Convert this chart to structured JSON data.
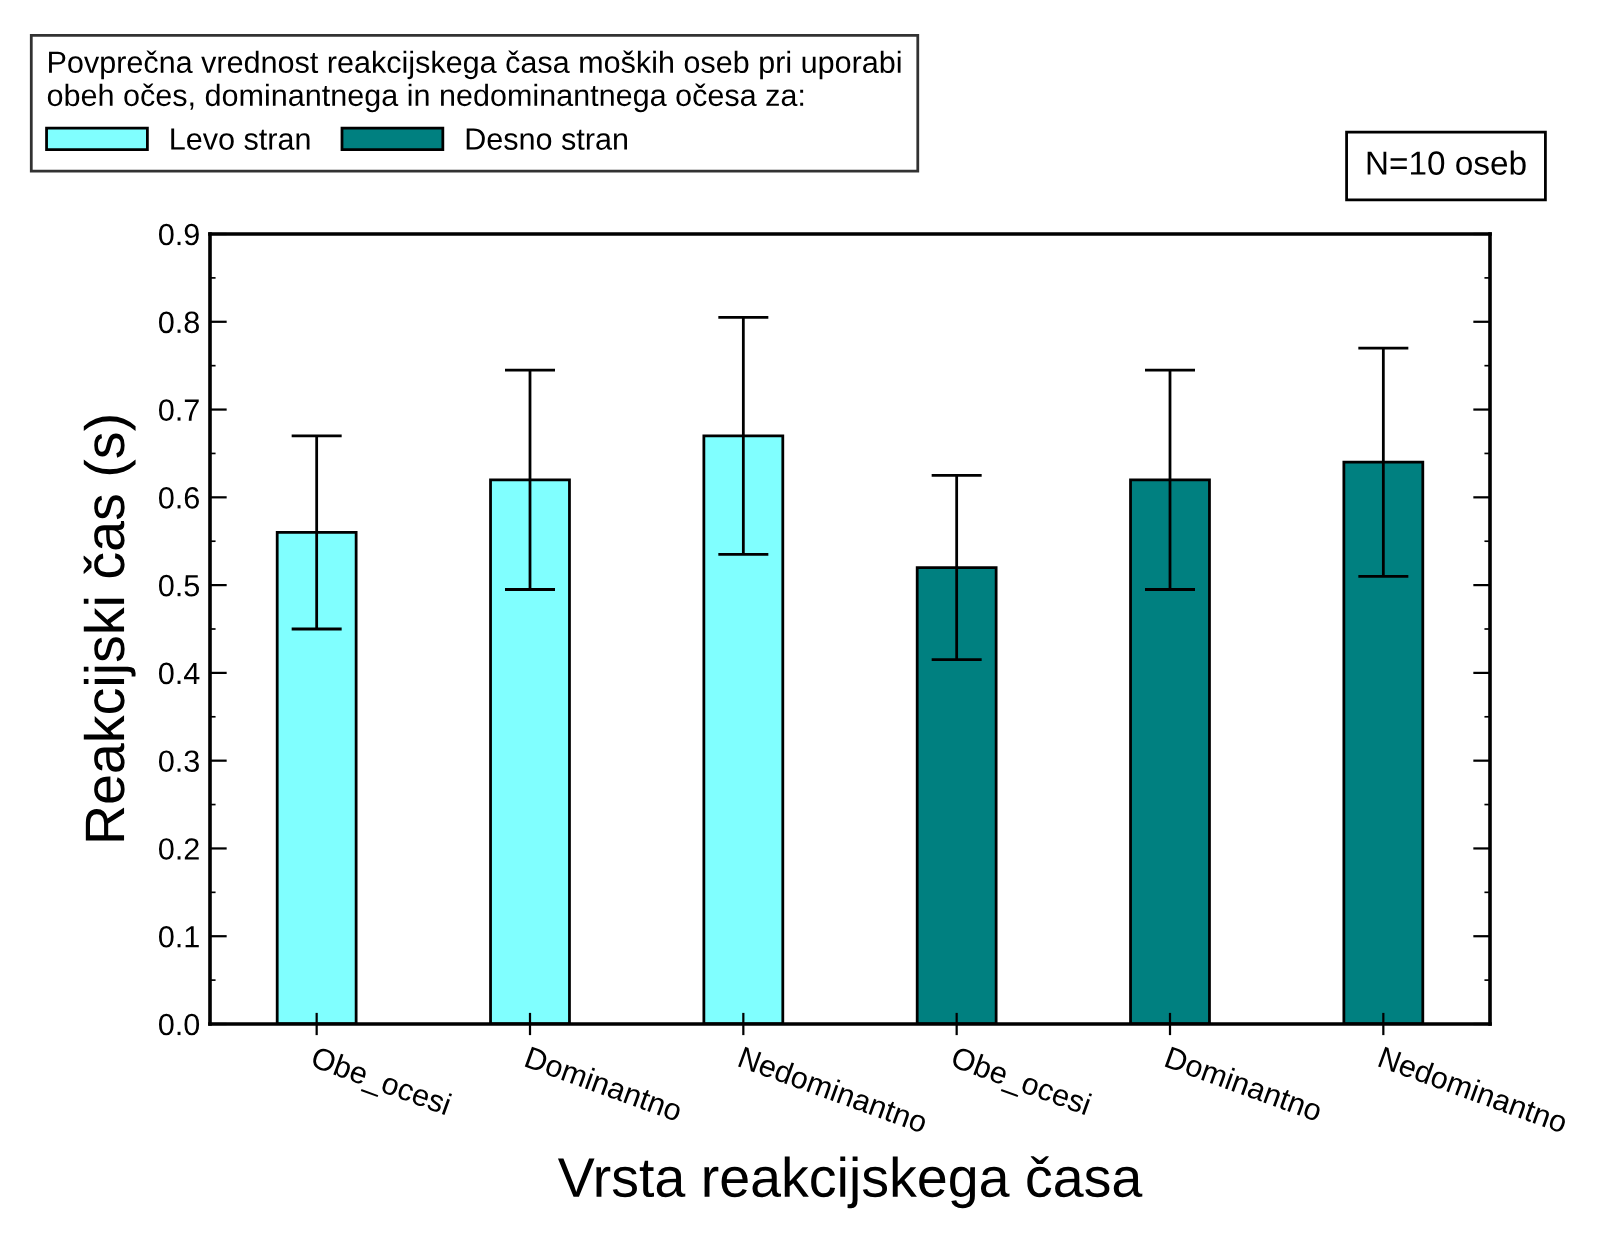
{
  "chart_data": {
    "type": "bar",
    "legend_title": "Povprečna vrednost reakcijskega časa moških oseb pri uporabi\nobeh očes, dominantnega in nedominantnega očesa za:",
    "xlabel": "Vrsta reakcijskega časa",
    "ylabel": "Reakcijski čas (s)",
    "categories": [
      "Obe_ocesi",
      "Dominantno",
      "Nedominantno",
      "Obe_ocesi",
      "Dominantno",
      "Nedominantno"
    ],
    "series": [
      {
        "name": "Levo stran",
        "color": "#80ffff",
        "values": [
          0.56,
          0.62,
          0.67,
          null,
          null,
          null
        ],
        "errors": [
          0.11,
          0.125,
          0.135,
          null,
          null,
          null
        ]
      },
      {
        "name": "Desno stran",
        "color": "#008080",
        "values": [
          null,
          null,
          null,
          0.52,
          0.62,
          0.64
        ],
        "errors": [
          null,
          null,
          null,
          0.105,
          0.125,
          0.13
        ]
      }
    ],
    "ylim": [
      0,
      0.9
    ],
    "yticks": [
      {
        "value": 0,
        "label": "0.0"
      },
      0.1,
      0.2,
      0.3,
      0.4,
      0.5,
      0.6,
      0.7,
      0.8,
      0.9
    ],
    "annotations": [
      "N=10 oseb"
    ],
    "legend": "top left",
    "grid": false
  }
}
